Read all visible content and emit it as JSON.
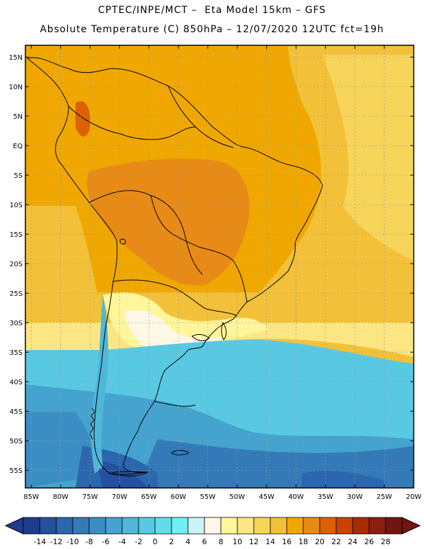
{
  "header": {
    "line1": "CPTEC/INPE/MCT –  Eta Model 15km – GFS",
    "line2": "Absolute Temperature (C) 850hPa – 12/07/2020 12UTC fct=19h"
  },
  "map": {
    "lon_range": [
      -86,
      -20
    ],
    "lat_range": [
      -58,
      17
    ],
    "lat_labels": [
      "15N",
      "10N",
      "5N",
      "EQ",
      "5S",
      "10S",
      "15S",
      "20S",
      "25S",
      "30S",
      "35S",
      "40S",
      "45S",
      "50S",
      "55S"
    ],
    "lat_values": [
      15,
      10,
      5,
      0,
      -5,
      -10,
      -15,
      -20,
      -25,
      -30,
      -35,
      -40,
      -45,
      -50,
      -55
    ],
    "lon_labels": [
      "85W",
      "80W",
      "75W",
      "70W",
      "65W",
      "60W",
      "55W",
      "50W",
      "45W",
      "40W",
      "35W",
      "30W",
      "25W",
      "20W"
    ],
    "lon_values": [
      -85,
      -80,
      -75,
      -70,
      -65,
      -60,
      -55,
      -50,
      -45,
      -40,
      -35,
      -30,
      -25,
      -20
    ]
  },
  "colorbar": {
    "labels": [
      "-14",
      "-12",
      "-10",
      "-8",
      "-6",
      "-4",
      "-2",
      "0",
      "2",
      "4",
      "6",
      "8",
      "10",
      "12",
      "14",
      "16",
      "18",
      "20",
      "22",
      "24",
      "26",
      "28"
    ],
    "colors": [
      "#1e3c8c",
      "#24509f",
      "#2b66ae",
      "#3479b8",
      "#3b8ec4",
      "#44a3cf",
      "#4fb7d9",
      "#59c9e3",
      "#63dbeb",
      "#6ff0f3",
      "#c9f4f8",
      "#fff8e6",
      "#fff59a",
      "#fbe683",
      "#f7d55a",
      "#f3c139",
      "#f0a800",
      "#e88b16",
      "#dd6100",
      "#c84300",
      "#a82c00",
      "#8c1f10",
      "#701612"
    ]
  }
}
